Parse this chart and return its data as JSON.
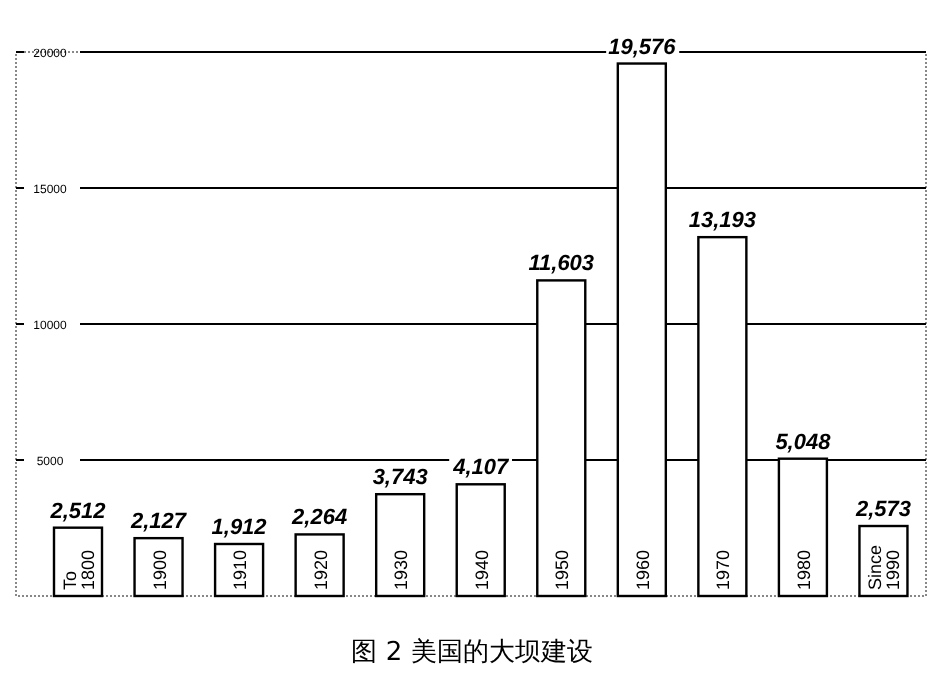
{
  "chart_data": {
    "type": "bar",
    "title": "图 2 美国的大坝建设",
    "categories": [
      "To 1800",
      "1900",
      "1910",
      "1920",
      "1930",
      "1940",
      "1950",
      "1960",
      "1970",
      "1980",
      "Since 1990"
    ],
    "values": [
      2512,
      2127,
      1912,
      2264,
      3743,
      4107,
      11603,
      19576,
      13193,
      5048,
      2573
    ],
    "value_labels": [
      "2,512",
      "2,127",
      "1,912",
      "2,264",
      "3,743",
      "4,107",
      "11,603",
      "19,576",
      "13,193",
      "5,048",
      "2,573"
    ],
    "color": "#ffffff",
    "ylim": [
      0,
      20000
    ],
    "yticks": [
      5000,
      10000,
      15000,
      20000
    ],
    "grid": "y"
  }
}
